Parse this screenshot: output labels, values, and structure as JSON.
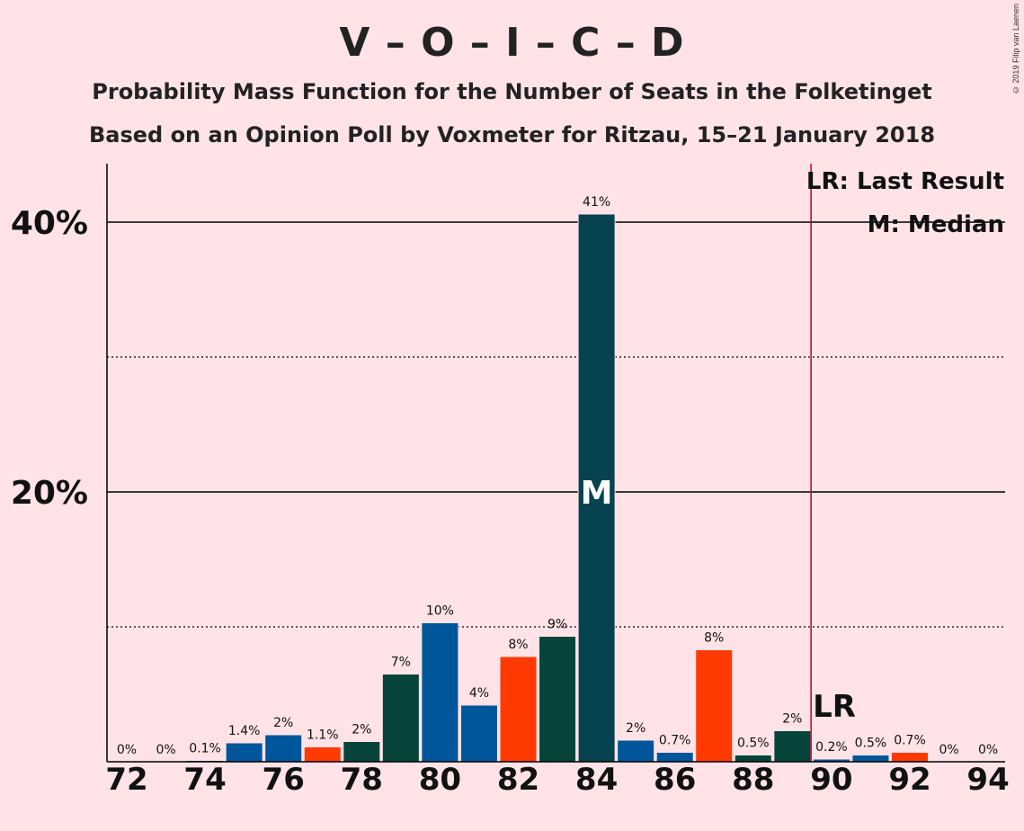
{
  "header": {
    "title": "V – O – I – C – D",
    "subtitle": "Probability Mass Function for the Number of Seats in the Folketinget",
    "subtitle2": "Based on an Opinion Poll by Voxmeter for Ritzau, 15–21 January 2018",
    "copyright": "© 2019 Filip van Laenen"
  },
  "chart_data": {
    "type": "bar",
    "x": [
      72,
      73,
      74,
      75,
      76,
      77,
      78,
      79,
      80,
      81,
      82,
      83,
      84,
      85,
      86,
      87,
      88,
      89,
      90,
      91,
      92,
      93,
      94
    ],
    "values": [
      0,
      0,
      0.1,
      1.4,
      2,
      1.1,
      2,
      7,
      10,
      4,
      8,
      9,
      41,
      2,
      0.7,
      8,
      0.5,
      2,
      0.2,
      0.5,
      0.7,
      0,
      0
    ],
    "bar_values": [
      0,
      0,
      0.1,
      1.4,
      2,
      1.1,
      1.5,
      6.5,
      10.3,
      4.2,
      7.8,
      9.3,
      40.6,
      1.6,
      0.7,
      8.3,
      0.5,
      2.3,
      0.2,
      0.5,
      0.7,
      0,
      0
    ],
    "data_labels": [
      "0%",
      "0%",
      "0.1%",
      "1.4%",
      "2%",
      "1.1%",
      "2%",
      "7%",
      "10%",
      "4%",
      "8%",
      "9%",
      "41%",
      "2%",
      "0.7%",
      "8%",
      "0.5%",
      "2%",
      "0.2%",
      "0.5%",
      "0.7%",
      "0%",
      "0%"
    ],
    "bar_colors": [
      "#00569a",
      "#00569a",
      "#00569a",
      "#00569a",
      "#00569a",
      "#ff3a00",
      "#06443b",
      "#06443b",
      "#00569a",
      "#00569a",
      "#ff3a00",
      "#06443b",
      "#06424f",
      "#00569a",
      "#00569a",
      "#ff3a00",
      "#06443b",
      "#06443b",
      "#00569a",
      "#00569a",
      "#ff3a00",
      "#00569a",
      "#00569a"
    ],
    "x_tick_labels": [
      "72",
      "74",
      "76",
      "78",
      "80",
      "82",
      "84",
      "86",
      "88",
      "90",
      "92",
      "94"
    ],
    "y_tick_labels": [
      "20%",
      "40%"
    ],
    "ylim": [
      0,
      44
    ],
    "grid": "solid at 20% and 40%, dotted at 10% and 30%",
    "median_seat": 84,
    "median_marker": "M",
    "last_result_seat": 90,
    "last_result_marker": "LR",
    "last_result_color": "#c0002a",
    "legend": {
      "placement": "top-right",
      "lr": "LR: Last Result",
      "median": "M: Median"
    }
  }
}
